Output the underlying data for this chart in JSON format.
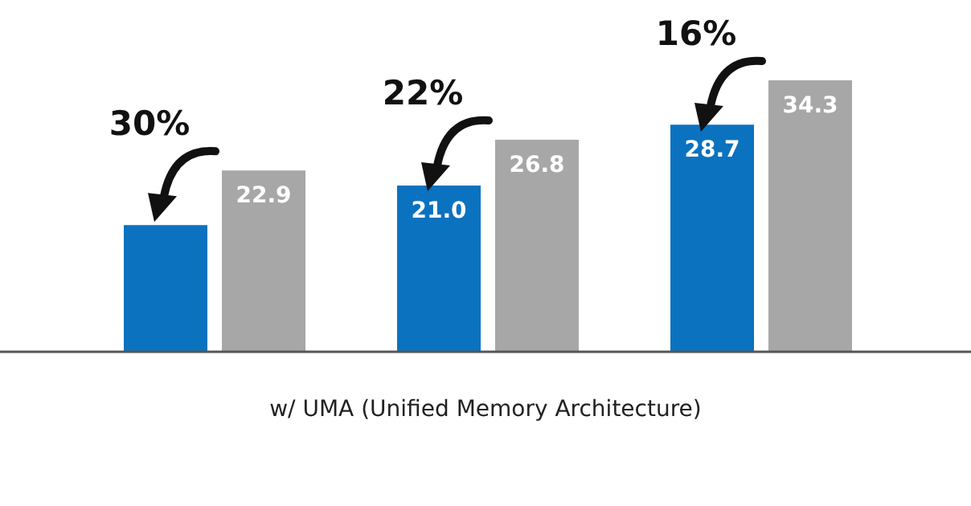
{
  "chart_data": {
    "type": "bar",
    "xlabel": "w/ UMA (Unified Memory Architecture)",
    "categories": [
      null,
      null,
      null
    ],
    "series": [
      {
        "color": "#0b72bf",
        "values": [
          16.0,
          21.0,
          28.7
        ],
        "value_labels": [
          null,
          "21.0",
          "28.7"
        ]
      },
      {
        "color": "#a7a7a7",
        "values": [
          22.9,
          26.8,
          34.3
        ],
        "value_labels": [
          "22.9",
          "26.8",
          "34.3"
        ]
      }
    ],
    "annotations": [
      "30%",
      "22%",
      "16%"
    ],
    "grid": false,
    "legend": false
  }
}
